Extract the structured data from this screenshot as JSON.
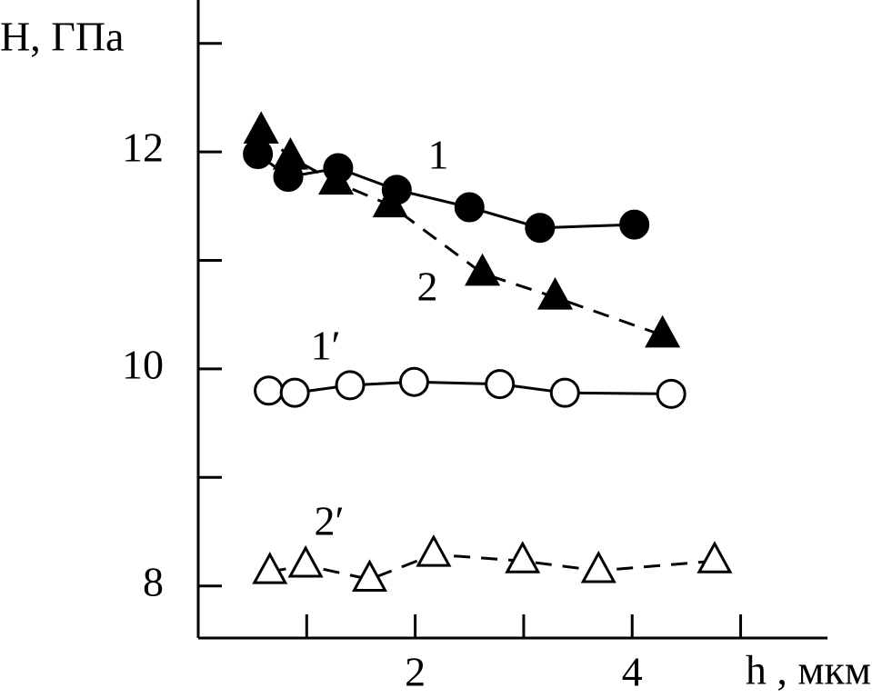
{
  "chart_data": {
    "type": "line",
    "ylabel": "H, ГПа",
    "xlabel": "h , мкм",
    "xlim": [
      0,
      5.8
    ],
    "ylim": [
      7.52,
      13.4
    ],
    "xticks": [
      2,
      4
    ],
    "xminorticks": [
      1,
      3,
      5
    ],
    "yticks": [
      8,
      10,
      12
    ],
    "yminorticks": [
      9,
      11,
      13
    ],
    "series": [
      {
        "name": "1",
        "color": "#000000",
        "marker": "circle",
        "filled": true,
        "dashed": false,
        "x": [
          0.55,
          0.83,
          1.29,
          1.83,
          2.5,
          3.15,
          4.02
        ],
        "values": [
          11.98,
          11.77,
          11.85,
          11.65,
          11.49,
          11.3,
          11.33
        ]
      },
      {
        "name": "2",
        "color": "#000000",
        "marker": "triangle",
        "filled": true,
        "dashed": true,
        "x": [
          0.58,
          0.85,
          1.27,
          1.77,
          2.62,
          3.29,
          4.28
        ],
        "values": [
          12.19,
          11.95,
          11.72,
          11.51,
          10.88,
          10.66,
          10.31
        ]
      },
      {
        "name": "1′",
        "color": "#000000",
        "marker": "circle",
        "filled": false,
        "dashed": false,
        "x": [
          0.65,
          0.89,
          1.4,
          1.99,
          2.78,
          3.38,
          4.36
        ],
        "values": [
          9.8,
          9.78,
          9.85,
          9.88,
          9.86,
          9.78,
          9.77
        ]
      },
      {
        "name": "2′",
        "color": "#000000",
        "marker": "triangle",
        "filled": false,
        "dashed": true,
        "x": [
          0.66,
          0.99,
          1.58,
          2.17,
          2.99,
          3.69,
          4.76
        ],
        "values": [
          8.13,
          8.19,
          8.06,
          8.29,
          8.23,
          8.14,
          8.23
        ]
      }
    ]
  }
}
